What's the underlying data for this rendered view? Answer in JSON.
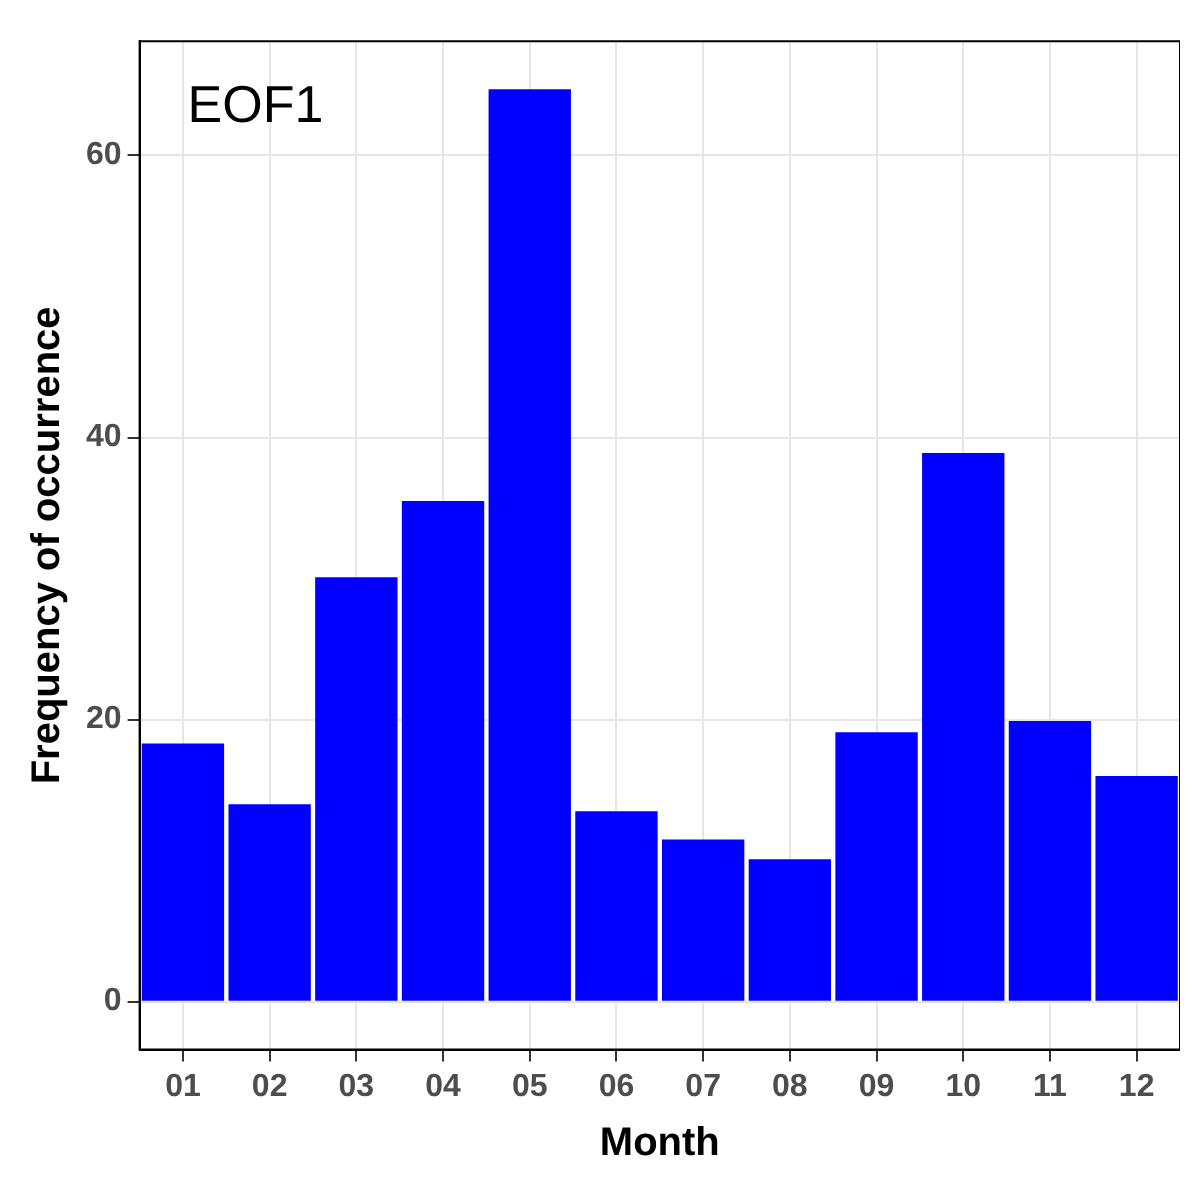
{
  "chart_data": {
    "type": "bar",
    "xlabel": "Month",
    "ylabel": "Frequency of occurrence",
    "categories": [
      "01",
      "02",
      "03",
      "04",
      "05",
      "06",
      "07",
      "08",
      "09",
      "10",
      "11",
      "12"
    ],
    "values": [
      18.3,
      14.0,
      30.1,
      35.5,
      64.7,
      13.5,
      11.5,
      10.1,
      19.1,
      38.9,
      19.9,
      16.0
    ],
    "color": "#0000ff",
    "ylim": [
      -3.4,
      68.1
    ],
    "yticks": [
      0,
      20,
      40,
      60
    ],
    "grid": true,
    "legend": false,
    "annotations": [
      "EOF1"
    ]
  }
}
